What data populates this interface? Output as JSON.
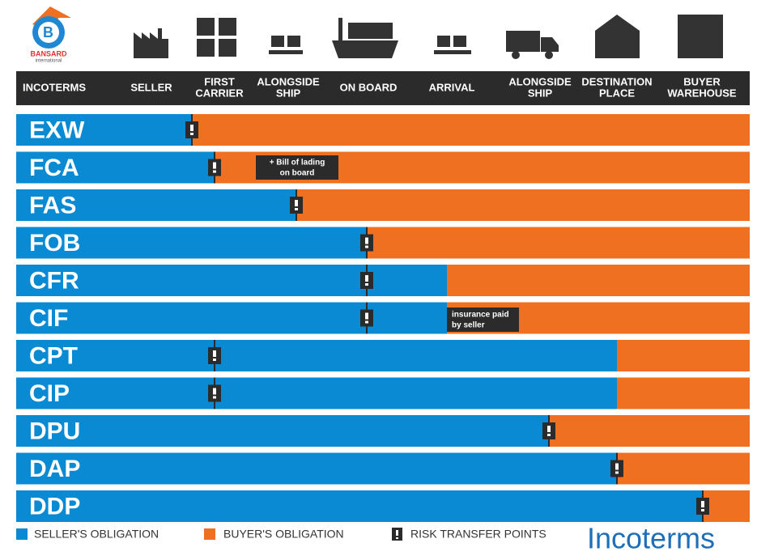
{
  "logo": {
    "name": "BANSARD",
    "tagline": "international"
  },
  "header": {
    "columns": [
      [
        "INCOTERMS"
      ],
      [
        "SELLER"
      ],
      [
        "FIRST",
        "CARRIER"
      ],
      [
        "ALONGSIDE",
        "SHIP"
      ],
      [
        "ON BOARD"
      ],
      [
        "ARRIVAL"
      ],
      [
        "ALONGSIDE",
        "SHIP"
      ],
      [
        "DESTINATION",
        "PLACE"
      ],
      [
        "BUYER",
        "WAREHOUSE"
      ]
    ]
  },
  "rows": [
    "EXW",
    "FCA",
    "FAS",
    "FOB",
    "CFR",
    "CIF",
    "CPT",
    "CIP",
    "DPU",
    "DAP",
    "DDP"
  ],
  "notes": {
    "fca": [
      "+ Bill of lading",
      "on board"
    ],
    "cif": [
      "insurance paid",
      "by seller"
    ]
  },
  "legend": {
    "seller": "SELLER'S OBLIGATION",
    "buyer": "BUYER'S OBLIGATION",
    "risk": "RISK TRANSFER POINTS"
  },
  "brand": "Incoterms"
}
